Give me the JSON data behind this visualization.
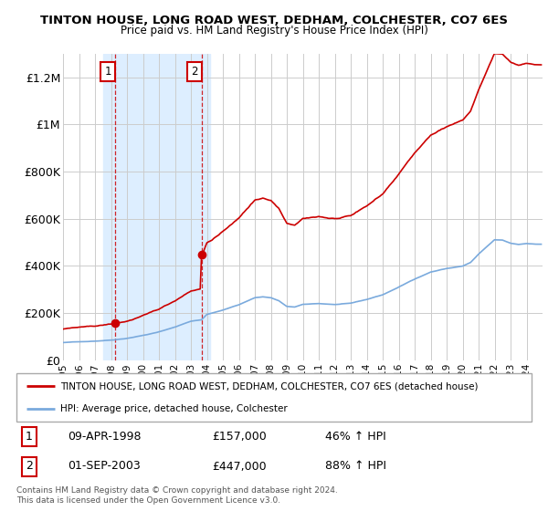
{
  "title": "TINTON HOUSE, LONG ROAD WEST, DEDHAM, COLCHESTER, CO7 6ES",
  "subtitle": "Price paid vs. HM Land Registry's House Price Index (HPI)",
  "ylim": [
    0,
    1300000
  ],
  "xlim_start": 1995.0,
  "xlim_end": 2025.0,
  "yticks": [
    0,
    200000,
    400000,
    600000,
    800000,
    1000000,
    1200000
  ],
  "ytick_labels": [
    "£0",
    "£200K",
    "£400K",
    "£600K",
    "£800K",
    "£1M",
    "£1.2M"
  ],
  "xticks": [
    1995,
    1996,
    1997,
    1998,
    1999,
    2000,
    2001,
    2002,
    2003,
    2004,
    2005,
    2006,
    2007,
    2008,
    2009,
    2010,
    2011,
    2012,
    2013,
    2014,
    2015,
    2016,
    2017,
    2018,
    2019,
    2020,
    2021,
    2022,
    2023,
    2024
  ],
  "grid_color": "#cccccc",
  "red_line_color": "#cc0000",
  "blue_line_color": "#7aaadd",
  "highlight_bg_color": "#ddeeff",
  "highlight_x_start": 1997.5,
  "highlight_x_end": 2004.2,
  "dashed_line1_x": 1998.27,
  "dashed_line2_x": 2003.67,
  "sale1_year": 1998.27,
  "sale1_price": 157000,
  "sale2_year": 2003.67,
  "sale2_price": 447000,
  "legend_line1": "TINTON HOUSE, LONG ROAD WEST, DEDHAM, COLCHESTER, CO7 6ES (detached house)",
  "legend_line2": "HPI: Average price, detached house, Colchester",
  "table_row1": [
    "1",
    "09-APR-1998",
    "£157,000",
    "46% ↑ HPI"
  ],
  "table_row2": [
    "2",
    "01-SEP-2003",
    "£447,000",
    "88% ↑ HPI"
  ],
  "footer": "Contains HM Land Registry data © Crown copyright and database right 2024.\nThis data is licensed under the Open Government Licence v3.0."
}
